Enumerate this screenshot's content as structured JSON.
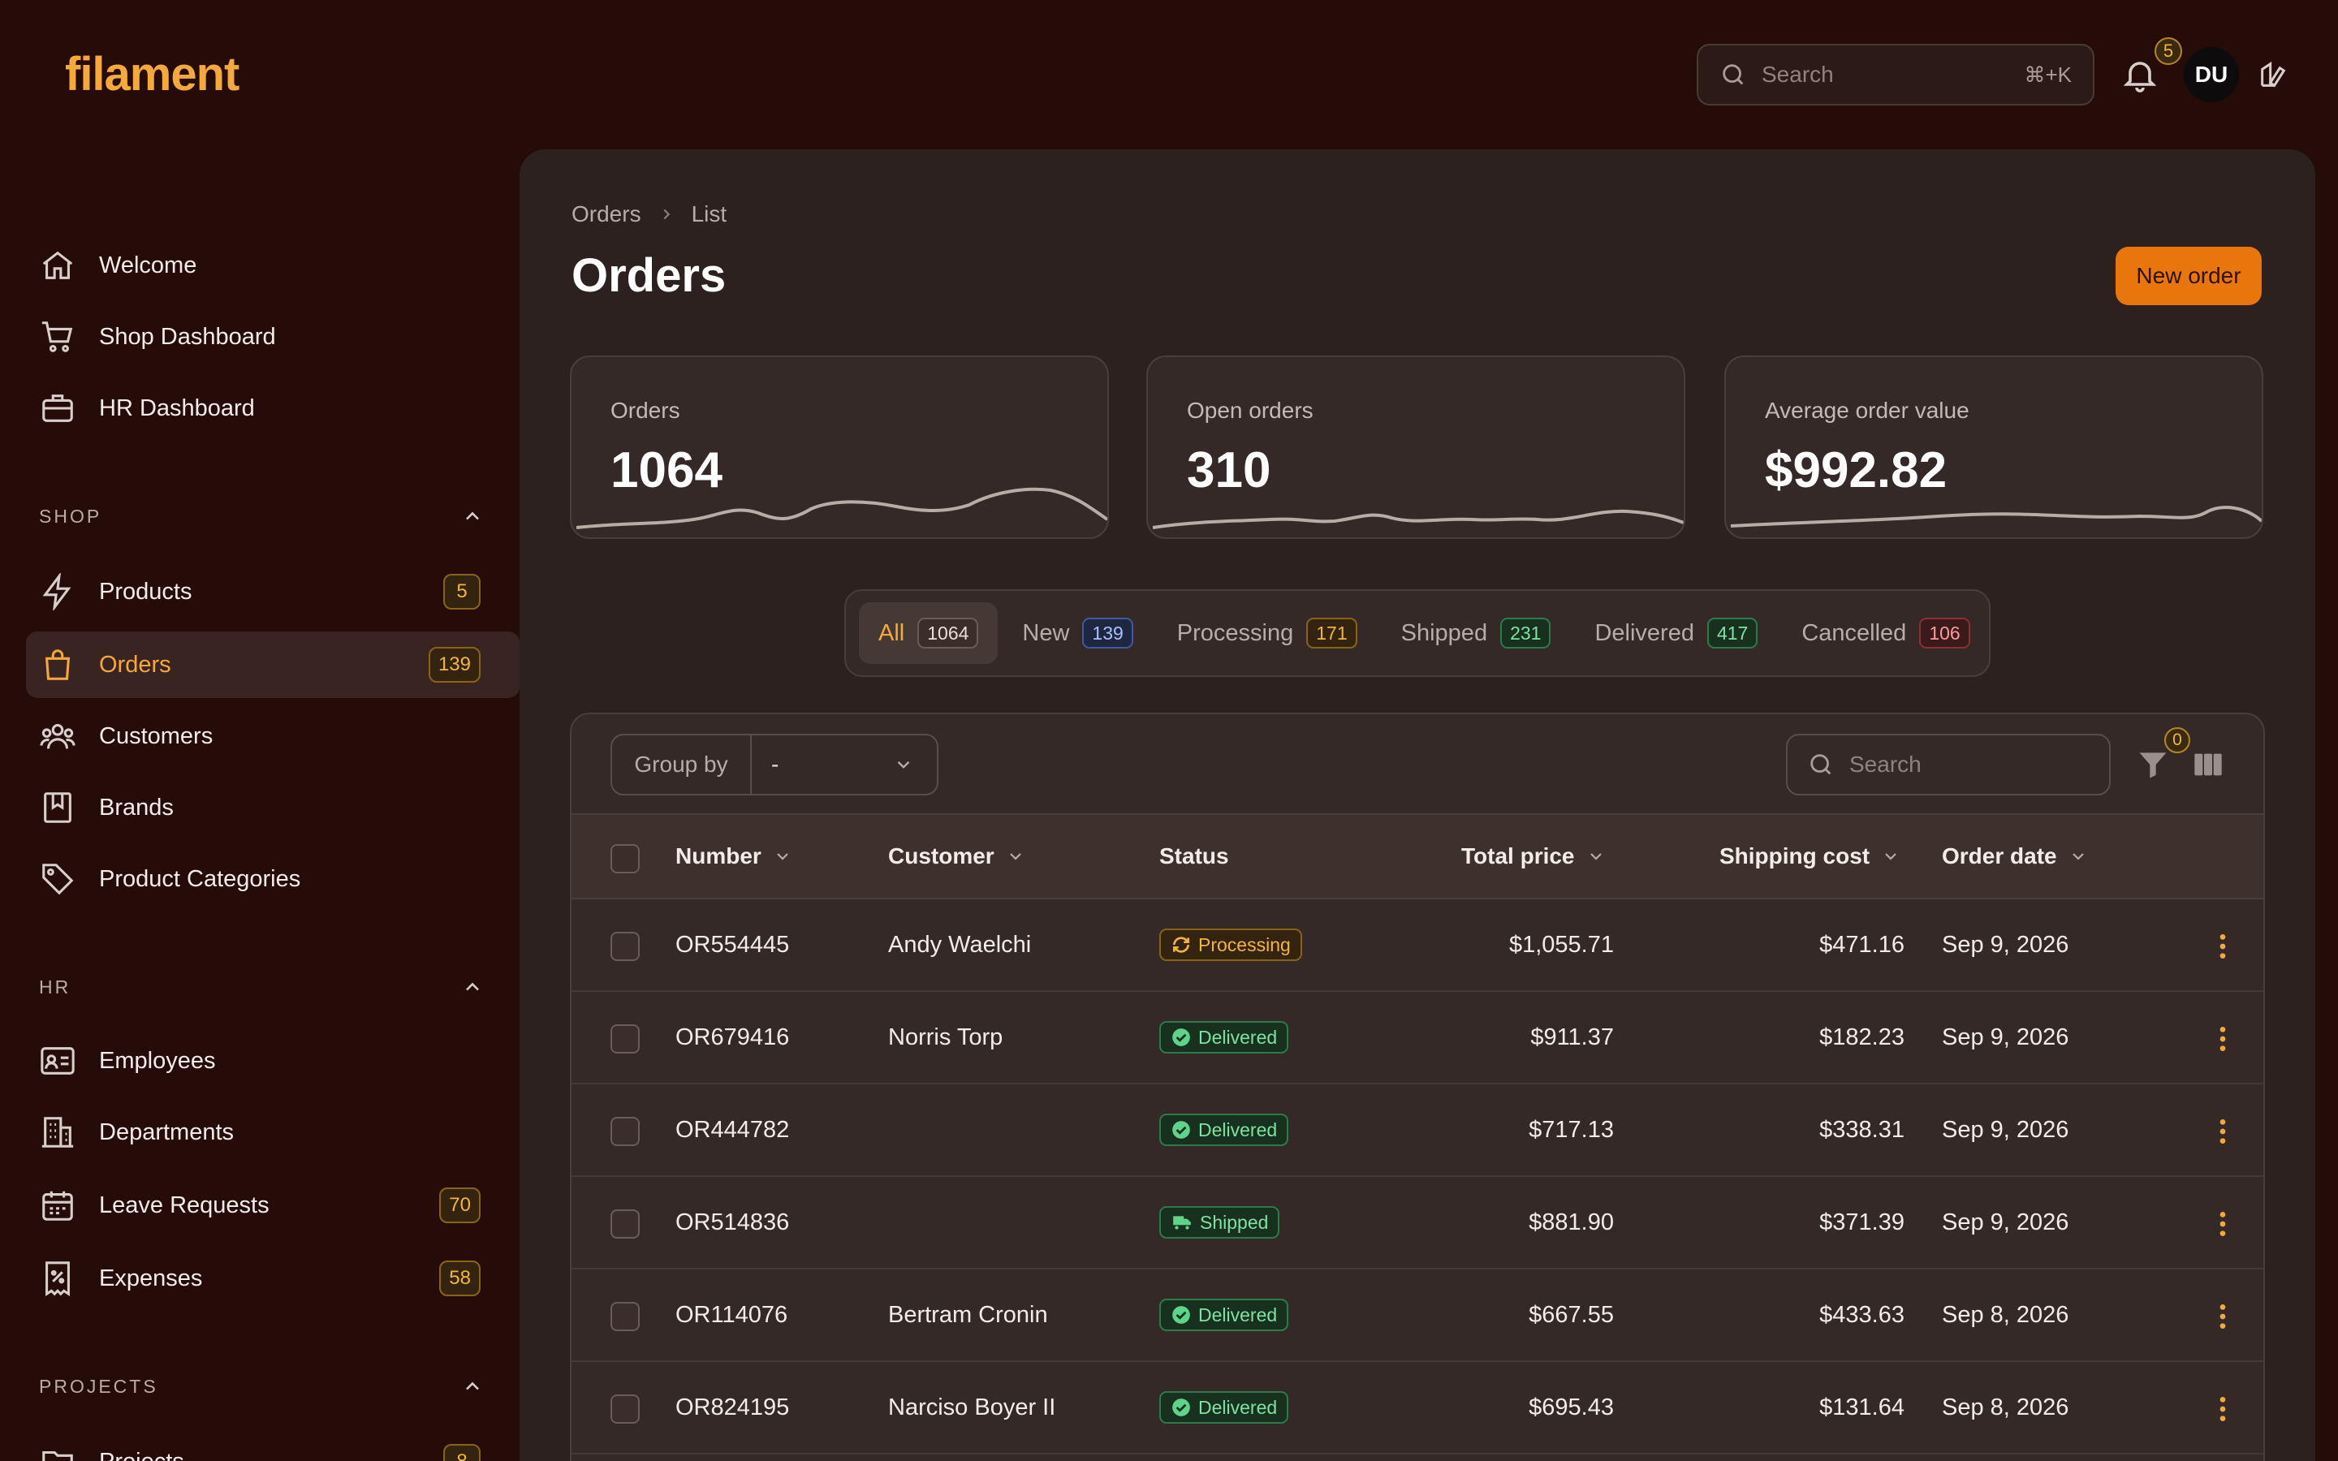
{
  "app": {
    "logo": "filament"
  },
  "topbar": {
    "search_placeholder": "Search",
    "search_shortcut": "⌘+K",
    "notifications_count": "5",
    "avatar_initials": "DU"
  },
  "sidebar": {
    "top_items": [
      {
        "label": "Welcome",
        "icon": "home-icon"
      },
      {
        "label": "Shop Dashboard",
        "icon": "cart-icon"
      },
      {
        "label": "HR Dashboard",
        "icon": "briefcase-icon"
      }
    ],
    "sections": [
      {
        "title": "SHOP",
        "items": [
          {
            "label": "Products",
            "icon": "bolt-icon",
            "count": "5"
          },
          {
            "label": "Orders",
            "icon": "bag-icon",
            "count": "139",
            "active": true
          },
          {
            "label": "Customers",
            "icon": "users-icon"
          },
          {
            "label": "Brands",
            "icon": "bookmark-icon"
          },
          {
            "label": "Product Categories",
            "icon": "tag-icon"
          }
        ]
      },
      {
        "title": "HR",
        "items": [
          {
            "label": "Employees",
            "icon": "id-card-icon"
          },
          {
            "label": "Departments",
            "icon": "building-icon"
          },
          {
            "label": "Leave Requests",
            "icon": "calendar-icon",
            "count": "70"
          },
          {
            "label": "Expenses",
            "icon": "receipt-icon",
            "count": "58"
          }
        ]
      },
      {
        "title": "PROJECTS",
        "items": [
          {
            "label": "Projects",
            "icon": "folder-icon",
            "count": "8"
          }
        ]
      }
    ]
  },
  "breadcrumbs": [
    "Orders",
    "List"
  ],
  "page": {
    "title": "Orders",
    "new_button": "New order"
  },
  "stats": [
    {
      "label": "Orders",
      "value": "1064"
    },
    {
      "label": "Open orders",
      "value": "310"
    },
    {
      "label": "Average order value",
      "value": "$992.82"
    }
  ],
  "tabs": [
    {
      "label": "All",
      "count": "1064",
      "active": true
    },
    {
      "label": "New",
      "count": "139"
    },
    {
      "label": "Processing",
      "count": "171"
    },
    {
      "label": "Shipped",
      "count": "231"
    },
    {
      "label": "Delivered",
      "count": "417"
    },
    {
      "label": "Cancelled",
      "count": "106"
    }
  ],
  "table": {
    "group_by_label": "Group by",
    "group_by_value": "-",
    "search_placeholder": "Search",
    "filter_count": "0",
    "columns": [
      "Number",
      "Customer",
      "Status",
      "Total price",
      "Shipping cost",
      "Order date"
    ],
    "rows": [
      {
        "number": "OR554445",
        "customer": "Andy Waelchi",
        "status": "Processing",
        "total": "$1,055.71",
        "shipping": "$471.16",
        "date": "Sep 9, 2026"
      },
      {
        "number": "OR679416",
        "customer": "Norris Torp",
        "status": "Delivered",
        "total": "$911.37",
        "shipping": "$182.23",
        "date": "Sep 9, 2026"
      },
      {
        "number": "OR444782",
        "customer": "",
        "status": "Delivered",
        "total": "$717.13",
        "shipping": "$338.31",
        "date": "Sep 9, 2026"
      },
      {
        "number": "OR514836",
        "customer": "",
        "status": "Shipped",
        "total": "$881.90",
        "shipping": "$371.39",
        "date": "Sep 9, 2026"
      },
      {
        "number": "OR114076",
        "customer": "Bertram Cronin",
        "status": "Delivered",
        "total": "$667.55",
        "shipping": "$433.63",
        "date": "Sep 8, 2026"
      },
      {
        "number": "OR824195",
        "customer": "Narciso Boyer II",
        "status": "Delivered",
        "total": "$695.43",
        "shipping": "$131.64",
        "date": "Sep 8, 2026"
      }
    ]
  },
  "colors": {
    "accent": "#f5a93c",
    "primary_button": "#e8760c",
    "background": "#260c09",
    "panel": "#2d211f"
  }
}
